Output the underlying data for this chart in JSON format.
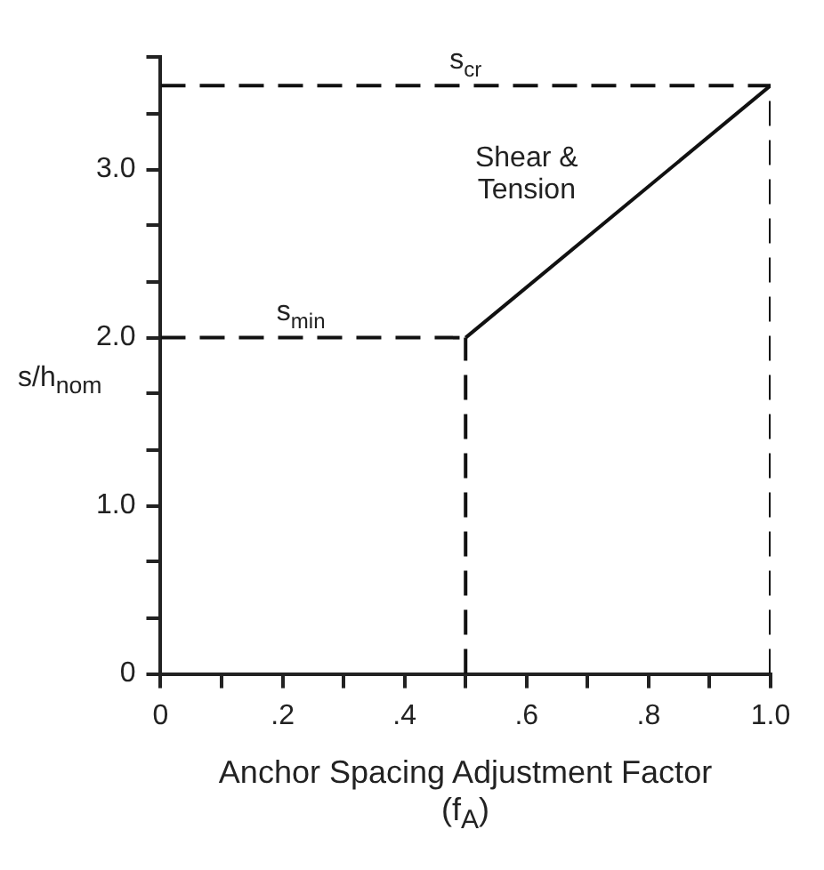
{
  "chart_data": {
    "type": "line",
    "xlabel": "Anchor Spacing Adjustment Factor\n(f$_{A}$)",
    "ylabel": "s/h$_{nom}$",
    "xlim": [
      0,
      1
    ],
    "ylim": [
      0,
      3.67
    ],
    "xticks": [
      0,
      {
        "value": 0.1,
        "label": null
      },
      {
        "value": 0.2,
        "label": ".2"
      },
      {
        "value": 0.3,
        "label": null
      },
      {
        "value": 0.4,
        "label": ".4"
      },
      {
        "value": 0.5,
        "label": null
      },
      {
        "value": 0.6,
        "label": ".6"
      },
      {
        "value": 0.7,
        "label": null
      },
      {
        "value": 0.8,
        "label": ".8"
      },
      {
        "value": 0.9,
        "label": null
      },
      {
        "value": 1,
        "label": "1.0"
      }
    ],
    "yticks": [
      0,
      {
        "value": 0.33,
        "label": null
      },
      {
        "value": 0.67,
        "label": null
      },
      {
        "value": 1,
        "label": "1.0"
      },
      {
        "value": 1.33,
        "label": null
      },
      {
        "value": 1.67,
        "label": null
      },
      {
        "value": 2,
        "label": "2.0"
      },
      {
        "value": 2.33,
        "label": null
      },
      {
        "value": 2.67,
        "label": null
      },
      {
        "value": 3,
        "label": "3.0"
      },
      {
        "value": 3.33,
        "label": null
      },
      {
        "value": 3.67,
        "label": null
      }
    ],
    "grid": false,
    "legend": false,
    "marker": "none",
    "series": [
      {
        "color": "#111111",
        "x": [
          0.5,
          1
        ],
        "values": [
          2,
          3.5
        ],
        "line_style": "solid"
      },
      {
        "color": "#111111",
        "x": [
          0,
          1
        ],
        "values": [
          3.5,
          3.5
        ],
        "line_style": "dashed"
      },
      {
        "color": "#111111",
        "x": [
          0,
          0.5
        ],
        "values": [
          2,
          2
        ],
        "line_style": "dashed"
      },
      {
        "color": "#111111",
        "x": [
          0.5,
          0.5
        ],
        "values": [
          0,
          2
        ],
        "line_style": "dashed"
      },
      {
        "color": "#111111",
        "x": [
          1,
          1
        ],
        "values": [
          0,
          3.5
        ],
        "line_style": "dashed"
      }
    ],
    "annotations": [
      {
        "text": "s$_{cr}$",
        "x": 0.5,
        "y": 3.5
      },
      {
        "text": "s$_{min}$",
        "x": 0.23,
        "y": 2
      },
      "Shear &\nTension"
    ]
  }
}
